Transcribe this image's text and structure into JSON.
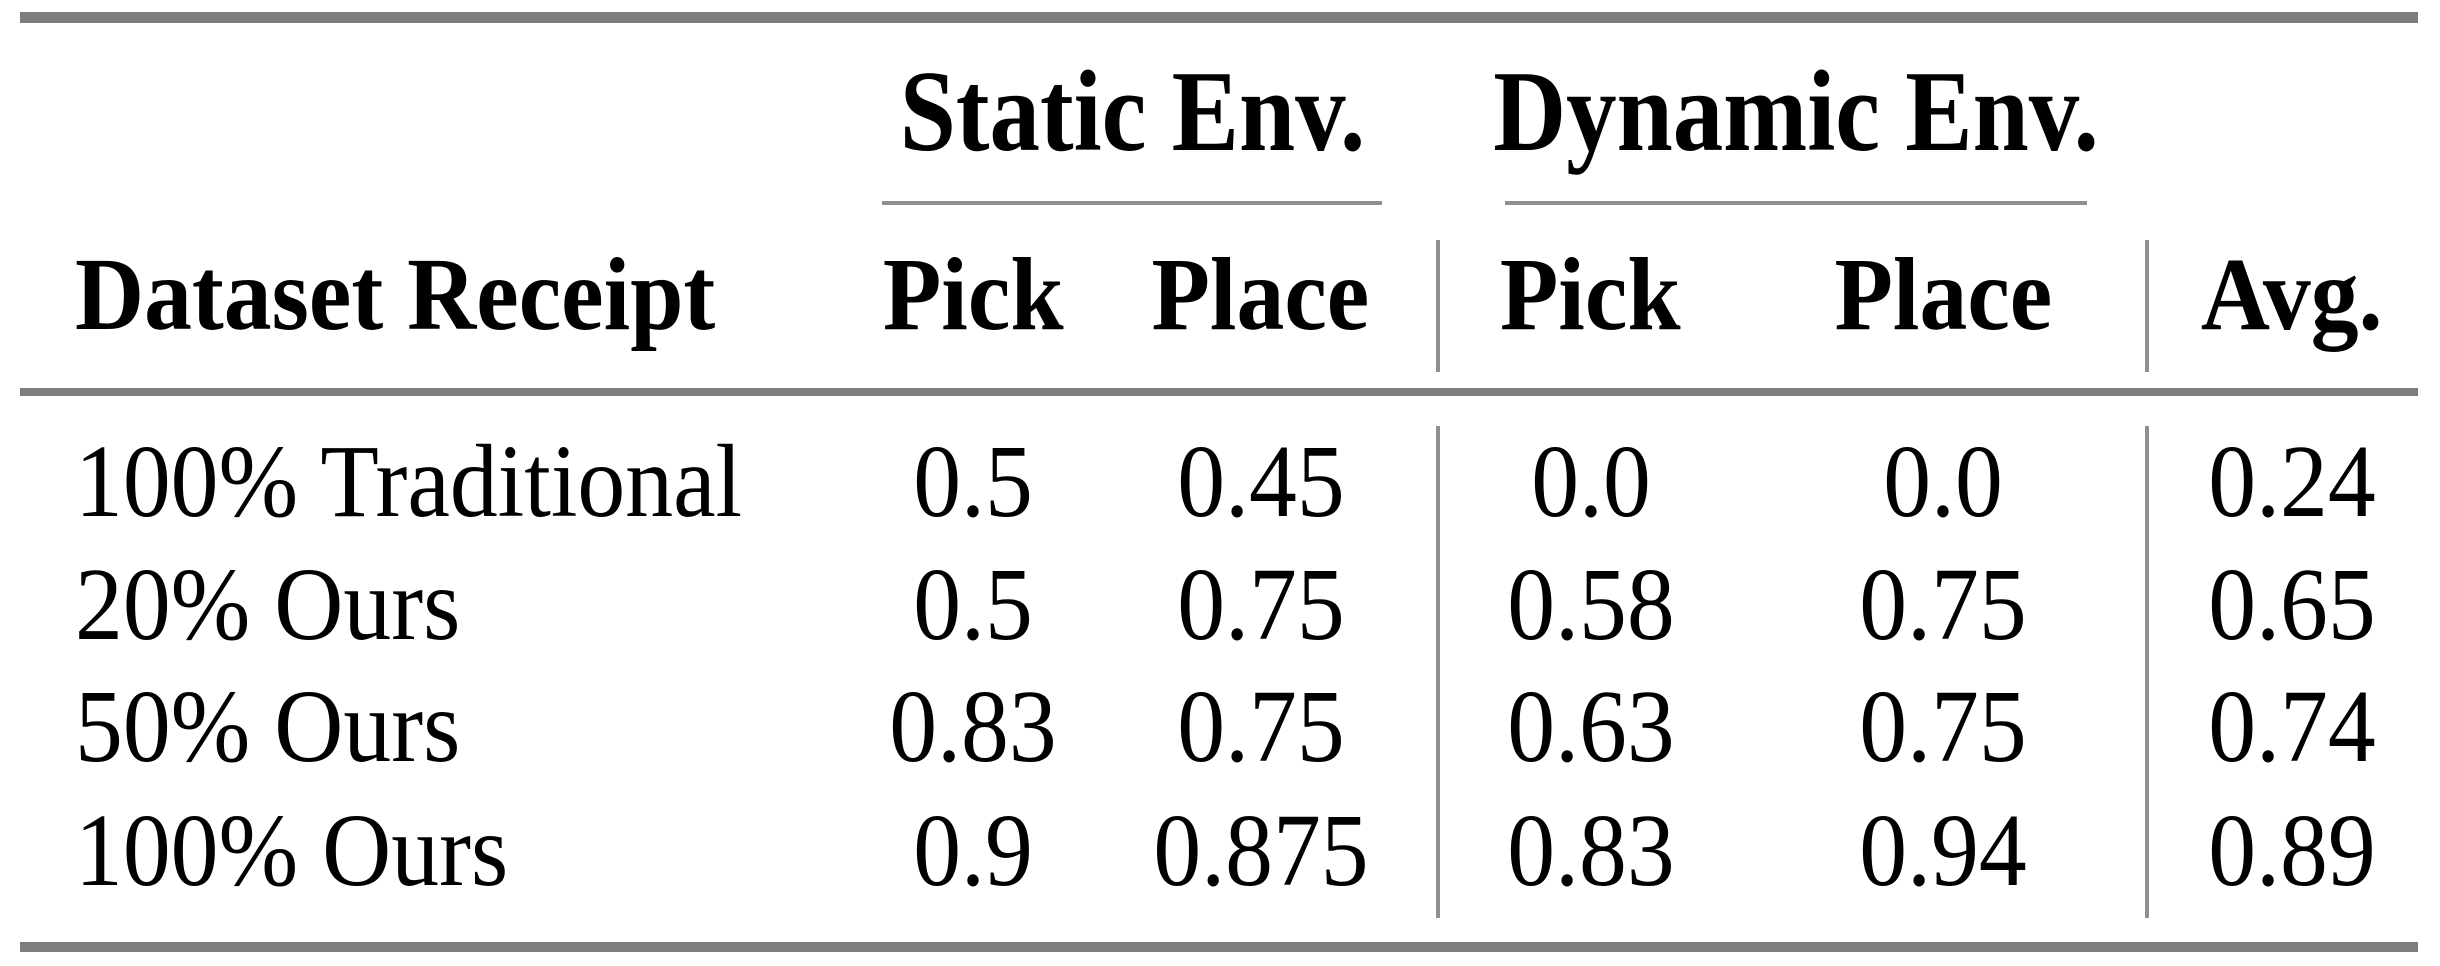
{
  "table": {
    "spanners": {
      "static": "Static Env.",
      "dynamic": "Dynamic Env."
    },
    "headers": {
      "dataset": "Dataset Receipt",
      "static_pick": "Pick",
      "static_place": "Place",
      "dynamic_pick": "Pick",
      "dynamic_place": "Place",
      "avg": "Avg."
    },
    "rows": [
      {
        "label": "100% Traditional",
        "static_pick": "0.5",
        "static_place": "0.45",
        "dynamic_pick": "0.0",
        "dynamic_place": "0.0",
        "avg": "0.24"
      },
      {
        "label": "20% Ours",
        "static_pick": "0.5",
        "static_place": "0.75",
        "dynamic_pick": "0.58",
        "dynamic_place": "0.75",
        "avg": "0.65"
      },
      {
        "label": "50% Ours",
        "static_pick": "0.83",
        "static_place": "0.75",
        "dynamic_pick": "0.63",
        "dynamic_place": "0.75",
        "avg": "0.74"
      },
      {
        "label": "100% Ours",
        "static_pick": "0.9",
        "static_place": "0.875",
        "dynamic_pick": "0.83",
        "dynamic_place": "0.94",
        "avg": "0.89"
      }
    ],
    "colors": {
      "rule": "#7d7d7d",
      "light_rule": "#8f8f8f",
      "text": "#000000",
      "background": "#ffffff"
    }
  }
}
